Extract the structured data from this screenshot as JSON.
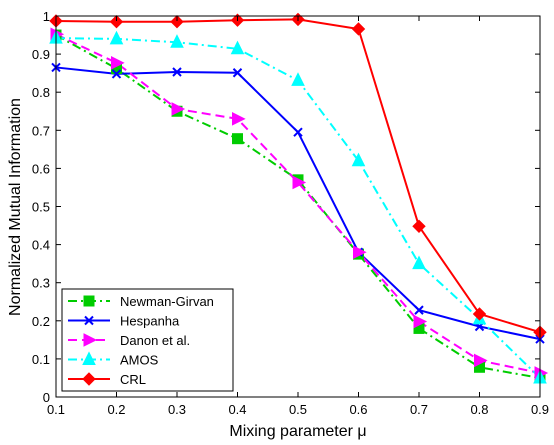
{
  "chart_data": {
    "type": "line",
    "xlabel": "Mixing parameter μ",
    "ylabel": "Normalized Mutual Information",
    "xlim": [
      0.1,
      0.9
    ],
    "ylim": [
      0,
      1
    ],
    "xticks": [
      "0.1",
      "0.2",
      "0.3",
      "0.4",
      "0.5",
      "0.6",
      "0.7",
      "0.8",
      "0.9"
    ],
    "yticks": [
      "0",
      "0.1",
      "0.2",
      "0.3",
      "0.4",
      "0.5",
      "0.6",
      "0.7",
      "0.8",
      "0.9",
      "1"
    ],
    "grid": false,
    "legend_position": "bottom-left",
    "x": [
      0.1,
      0.2,
      0.3,
      0.4,
      0.5,
      0.6,
      0.7,
      0.8,
      0.9
    ],
    "series": [
      {
        "name": "Newman-Girvan",
        "color": "#00cc00",
        "dash": "dash-dot",
        "marker": "square",
        "values": [
          0.95,
          0.862,
          0.75,
          0.678,
          0.57,
          0.375,
          0.18,
          0.078,
          0.05
        ]
      },
      {
        "name": "Hespanha",
        "color": "#0000ff",
        "dash": "solid",
        "marker": "x",
        "values": [
          0.865,
          0.848,
          0.853,
          0.851,
          0.695,
          0.38,
          0.228,
          0.185,
          0.152
        ]
      },
      {
        "name": "Danon et al.",
        "color": "#ff00ff",
        "dash": "dashed",
        "marker": "triangle-right",
        "values": [
          0.952,
          0.877,
          0.756,
          0.73,
          0.563,
          0.38,
          0.198,
          0.096,
          0.063
        ]
      },
      {
        "name": "AMOS",
        "color": "#00ffff",
        "dash": "dash-dot",
        "marker": "triangle-up",
        "values": [
          0.942,
          0.94,
          0.931,
          0.914,
          0.831,
          0.62,
          0.35,
          0.205,
          0.05
        ]
      },
      {
        "name": "CRL",
        "color": "#ff0000",
        "dash": "solid",
        "marker": "diamond",
        "values": [
          0.987,
          0.985,
          0.985,
          0.989,
          0.991,
          0.966,
          0.448,
          0.218,
          0.17
        ]
      }
    ]
  }
}
